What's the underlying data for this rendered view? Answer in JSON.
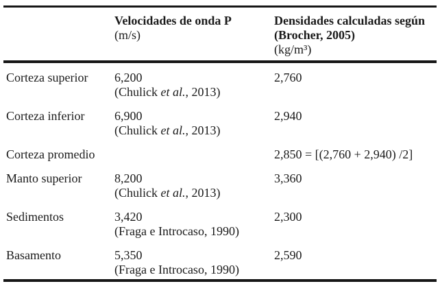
{
  "table": {
    "header": {
      "row_label_col": "",
      "velocity": {
        "title": "Velocidades de onda P",
        "unit": "(m/s)"
      },
      "density": {
        "title": "Densidades calculadas según (Brocher, 2005)",
        "unit": "(kg/m³)"
      }
    },
    "rows": [
      {
        "label": "Corteza superior",
        "velocity": "6,200",
        "source_pre": "(Chulick ",
        "source_italic": "et al.",
        "source_post": ", 2013)",
        "density": "2,760"
      },
      {
        "label": "Corteza inferior",
        "velocity": "6,900",
        "source_pre": "(Chulick ",
        "source_italic": "et al.",
        "source_post": ", 2013)",
        "density": "2,940"
      },
      {
        "label": "Corteza promedio",
        "velocity": "",
        "source_pre": "",
        "source_italic": "",
        "source_post": "",
        "density": "2,850 = [(2,760 + 2,940) /2]"
      },
      {
        "label": "Manto superior",
        "velocity": "8,200",
        "source_pre": "(Chulick ",
        "source_italic": "et al.",
        "source_post": ", 2013)",
        "density": "3,360"
      },
      {
        "label": "Sedimentos",
        "velocity": "3,420",
        "source_pre": "(Fraga e Introcaso, 1990)",
        "source_italic": "",
        "source_post": "",
        "density": "2,300"
      },
      {
        "label": "Basamento",
        "velocity": "5,350",
        "source_pre": "(Fraga e Introcaso, 1990)",
        "source_italic": "",
        "source_post": "",
        "density": "2,590"
      }
    ]
  },
  "colors": {
    "text": "#1a1a1a",
    "rule": "#161616",
    "background": "#ffffff"
  }
}
